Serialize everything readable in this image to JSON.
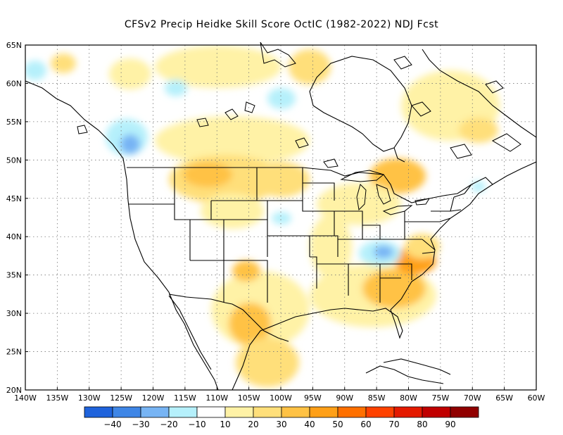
{
  "title": "CFSv2 Precip Heidke Skill Score OctIC (1982-2022) NDJ Fcst",
  "map": {
    "lon_labels": [
      "140W",
      "135W",
      "130W",
      "125W",
      "120W",
      "115W",
      "110W",
      "105W",
      "100W",
      "95W",
      "90W",
      "85W",
      "80W",
      "75W",
      "70W",
      "65W",
      "60W"
    ],
    "lat_labels": [
      "65N",
      "60N",
      "55N",
      "50N",
      "45N",
      "40N",
      "35N",
      "30N",
      "25N",
      "20N"
    ],
    "lon_range": [
      -140,
      -60
    ],
    "lat_range": [
      20,
      65
    ],
    "grid": "dotted",
    "land_outline_color": "#000000",
    "regions": [
      {
        "name": "northern-rockies-positive",
        "level": 40,
        "lon": -112,
        "lat": 48
      },
      {
        "name": "southern-plains-positive",
        "level": 30,
        "lon": -102,
        "lat": 30
      },
      {
        "name": "mid-atlantic-positive",
        "level": 40,
        "lon": -79,
        "lat": 35.5
      },
      {
        "name": "southeast-positive",
        "level": 30,
        "lon": -84,
        "lat": 31
      },
      {
        "name": "great-lakes-north-positive",
        "level": 30,
        "lon": -84,
        "lat": 48
      },
      {
        "name": "bc-negative",
        "level": -30,
        "lon": -126,
        "lat": 52
      },
      {
        "name": "kentucky-negative",
        "level": -30,
        "lon": -86,
        "lat": 37.5
      },
      {
        "name": "hudson-negative",
        "level": -20,
        "lon": -110,
        "lat": 58
      }
    ]
  },
  "colorbar": {
    "colors": [
      "#1f63dc",
      "#3f86e6",
      "#77b4f4",
      "#b5f0fb",
      "#ffffff",
      "#fff2a6",
      "#ffdf7a",
      "#ffc245",
      "#ffa018",
      "#ff7000",
      "#ff4200",
      "#e41a00",
      "#c00000",
      "#900000"
    ],
    "labels": [
      "-40",
      "-30",
      "-20",
      "-10",
      "10",
      "20",
      "30",
      "40",
      "50",
      "60",
      "70",
      "80",
      "90"
    ]
  }
}
